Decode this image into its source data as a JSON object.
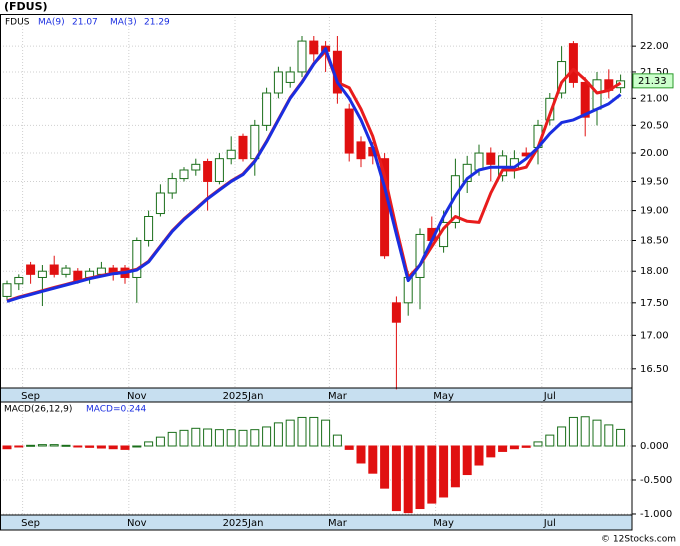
{
  "chart_data": [
    {
      "type": "candlestick",
      "title": "(FDUS)",
      "symbol": "FDUS",
      "categories": [
        null,
        null,
        "Sep",
        null,
        null,
        null,
        null,
        null,
        null,
        null,
        null,
        "Nov",
        null,
        null,
        null,
        null,
        null,
        null,
        null,
        null,
        "2025Jan",
        null,
        null,
        null,
        null,
        null,
        null,
        null,
        "Mar",
        null,
        null,
        null,
        null,
        null,
        null,
        null,
        null,
        "May",
        null,
        null,
        null,
        null,
        null,
        null,
        null,
        null,
        "Jul",
        null,
        null,
        null,
        null,
        null,
        null
      ],
      "open": [
        17.6,
        17.8,
        18.1,
        17.9,
        18.1,
        17.95,
        18.0,
        17.9,
        17.95,
        18.05,
        18.05,
        17.9,
        18.5,
        18.95,
        19.3,
        19.55,
        19.7,
        19.85,
        19.5,
        19.9,
        20.3,
        19.9,
        20.5,
        21.1,
        21.3,
        21.5,
        22.1,
        22.0,
        21.9,
        20.8,
        20.2,
        20.1,
        19.9,
        17.5,
        17.5,
        17.9,
        18.7,
        18.4,
        18.8,
        19.5,
        19.7,
        20.0,
        19.6,
        19.7,
        20.0,
        20.1,
        20.6,
        21.1,
        22.05,
        21.3,
        20.8,
        21.35,
        21.2
      ],
      "high": [
        17.85,
        17.95,
        18.15,
        18.1,
        18.25,
        18.1,
        18.05,
        18.05,
        18.15,
        18.1,
        18.1,
        18.55,
        19.0,
        19.45,
        19.65,
        19.75,
        19.9,
        19.9,
        20.0,
        20.3,
        20.35,
        20.6,
        21.2,
        21.6,
        21.6,
        22.2,
        22.2,
        22.1,
        22.2,
        20.9,
        20.3,
        20.2,
        20.0,
        17.6,
        18.0,
        18.7,
        18.9,
        19.0,
        19.9,
        19.95,
        20.15,
        20.1,
        20.05,
        20.05,
        20.1,
        20.6,
        21.1,
        22.0,
        22.1,
        21.4,
        21.5,
        21.55,
        21.45
      ],
      "low": [
        17.55,
        17.7,
        17.8,
        17.45,
        17.9,
        17.9,
        17.8,
        17.8,
        17.9,
        17.85,
        17.8,
        17.5,
        18.4,
        18.9,
        19.2,
        19.5,
        19.6,
        19.0,
        19.45,
        19.8,
        19.85,
        19.6,
        20.4,
        21.0,
        21.2,
        21.4,
        21.7,
        21.5,
        20.9,
        19.85,
        19.75,
        19.8,
        18.2,
        16.2,
        17.3,
        17.4,
        18.4,
        18.3,
        18.7,
        19.3,
        19.6,
        19.5,
        19.5,
        19.55,
        19.9,
        19.8,
        20.5,
        21.0,
        21.2,
        20.3,
        20.5,
        21.0,
        21.1
      ],
      "close": [
        17.8,
        17.9,
        17.95,
        18.0,
        17.95,
        18.05,
        17.85,
        18.0,
        18.05,
        17.95,
        17.9,
        18.5,
        18.9,
        19.3,
        19.55,
        19.7,
        19.8,
        19.5,
        19.9,
        20.05,
        19.9,
        20.5,
        21.1,
        21.5,
        21.5,
        22.1,
        21.85,
        21.9,
        21.1,
        20.0,
        19.9,
        19.95,
        18.25,
        17.2,
        17.9,
        18.6,
        18.5,
        18.8,
        19.6,
        19.8,
        20.0,
        19.8,
        19.95,
        19.9,
        19.95,
        20.5,
        21.0,
        21.7,
        21.3,
        20.65,
        21.35,
        21.15,
        21.33
      ],
      "up_color": "#1a6e1a",
      "down_color": "#e01010",
      "series": [
        {
          "name": "MA(3)",
          "color": "#e81c1c",
          "values": [
            17.53,
            17.59,
            17.64,
            17.69,
            17.74,
            17.79,
            17.84,
            17.89,
            17.93,
            17.97,
            17.99,
            18.03,
            18.16,
            18.41,
            18.66,
            18.86,
            19.03,
            19.21,
            19.36,
            19.51,
            19.63,
            19.86,
            20.21,
            20.61,
            21.01,
            21.31,
            21.66,
            21.9,
            21.3,
            21.2,
            20.8,
            20.3,
            19.6,
            18.7,
            17.9,
            18.1,
            18.4,
            18.7,
            18.9,
            18.82,
            18.8,
            19.3,
            19.7,
            19.7,
            19.75,
            20.1,
            20.7,
            21.3,
            21.55,
            21.35,
            21.1,
            21.15,
            21.29
          ]
        },
        {
          "name": "MA(9)",
          "color": "#1a2ee0",
          "values": [
            17.52,
            17.58,
            17.63,
            17.68,
            17.73,
            17.78,
            17.83,
            17.88,
            17.92,
            17.96,
            17.98,
            18.02,
            18.15,
            18.4,
            18.65,
            18.85,
            19.02,
            19.2,
            19.35,
            19.5,
            19.62,
            19.85,
            20.2,
            20.6,
            21.0,
            21.3,
            21.65,
            21.95,
            21.3,
            21.0,
            20.6,
            20.1,
            19.4,
            18.6,
            17.85,
            18.1,
            18.5,
            18.9,
            19.25,
            19.55,
            19.7,
            19.75,
            19.75,
            19.75,
            19.9,
            20.1,
            20.35,
            20.55,
            20.6,
            20.7,
            20.8,
            20.9,
            21.07
          ]
        }
      ],
      "log_scale": true,
      "grid": true,
      "ylim": [
        16.22,
        22.64
      ],
      "yticks": [
        {
          "value": 16.5,
          "label": "16.50"
        },
        {
          "value": 17,
          "label": "17.00"
        },
        {
          "value": 17.5,
          "label": "17.50"
        },
        {
          "value": 18,
          "label": "18.00"
        },
        {
          "value": 18.5,
          "label": "18.50"
        },
        {
          "value": 19,
          "label": "19.00"
        },
        {
          "value": 19.5,
          "label": "19.50"
        },
        {
          "value": 20,
          "label": "20.00"
        },
        {
          "value": 20.5,
          "label": "20.50"
        },
        {
          "value": 21,
          "label": "21.00"
        },
        {
          "value": 21.5,
          "label": "21.50"
        },
        {
          "value": 22,
          "label": "22.00"
        }
      ]
    },
    {
      "type": "bar",
      "title": "MACD(26,12,9)",
      "legend_text": "MACD=0.244",
      "values": [
        -0.04,
        -0.01,
        0.01,
        0.02,
        0.02,
        0.01,
        -0.01,
        -0.02,
        -0.03,
        -0.04,
        -0.05,
        0.0,
        0.06,
        0.13,
        0.2,
        0.23,
        0.26,
        0.25,
        0.24,
        0.24,
        0.23,
        0.24,
        0.28,
        0.34,
        0.38,
        0.42,
        0.42,
        0.38,
        0.16,
        -0.05,
        -0.25,
        -0.4,
        -0.62,
        -0.95,
        -0.98,
        -0.92,
        -0.84,
        -0.75,
        -0.6,
        -0.42,
        -0.28,
        -0.16,
        -0.08,
        -0.04,
        -0.02,
        0.06,
        0.16,
        0.28,
        0.42,
        0.43,
        0.38,
        0.31,
        0.244
      ],
      "up_color": "#1a6e1a",
      "down_color": "#e01010",
      "ylim": [
        -1.015,
        0.647
      ],
      "yticks": [
        {
          "value": 0,
          "label": "0.000"
        },
        {
          "value": -0.5,
          "label": "-0.500"
        },
        {
          "value": -1,
          "label": "-1.000"
        }
      ]
    }
  ],
  "footer": "© 12Stocks.com"
}
